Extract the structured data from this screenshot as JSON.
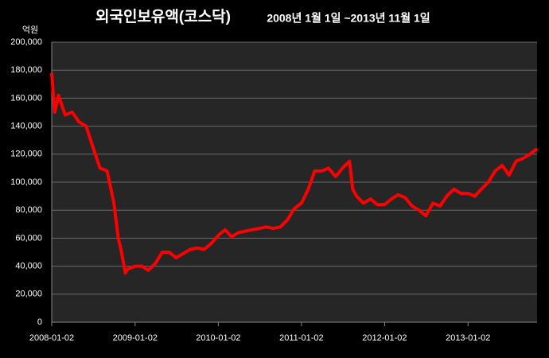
{
  "chart_data": {
    "type": "line",
    "title": "외국인보유액(코스닥)",
    "subtitle": "2008년 1월 1일 ~2013년 11월 1일",
    "y_label": "억원",
    "xlim": [
      "2008-01-02",
      "2013-11-01"
    ],
    "xticks": [
      "2008-01-02",
      "2009-01-02",
      "2010-01-02",
      "2011-01-02",
      "2012-01-02",
      "2013-01-02"
    ],
    "ylim": [
      0,
      200000
    ],
    "yticks": [
      0,
      {
        "value": 20000,
        "label": "20,000"
      },
      {
        "value": 40000,
        "label": "40,000"
      },
      {
        "value": 60000,
        "label": "60,000"
      },
      {
        "value": 80000,
        "label": "80,000"
      },
      {
        "value": 100000,
        "label": "100,000"
      },
      {
        "value": 120000,
        "label": "120,000"
      },
      {
        "value": 140000,
        "label": "140,000"
      },
      {
        "value": 160000,
        "label": "160,000"
      },
      {
        "value": 180000,
        "label": "180,000"
      },
      {
        "value": 200000,
        "label": "200,000"
      }
    ],
    "grid": true,
    "x": [
      "2008-01-02",
      "2008-01-15",
      "2008-02-01",
      "2008-03-01",
      "2008-04-01",
      "2008-05-01",
      "2008-06-01",
      "2008-07-01",
      "2008-08-01",
      "2008-09-01",
      "2008-10-01",
      "2008-10-20",
      "2008-11-01",
      "2008-11-20",
      "2008-12-01",
      "2009-01-02",
      "2009-02-01",
      "2009-03-01",
      "2009-04-01",
      "2009-05-01",
      "2009-06-01",
      "2009-07-01",
      "2009-08-01",
      "2009-09-01",
      "2009-10-01",
      "2009-11-01",
      "2009-12-01",
      "2010-01-02",
      "2010-02-01",
      "2010-03-01",
      "2010-04-01",
      "2010-05-01",
      "2010-06-01",
      "2010-07-01",
      "2010-08-01",
      "2010-09-01",
      "2010-10-01",
      "2010-11-01",
      "2010-12-01",
      "2011-01-02",
      "2011-02-01",
      "2011-03-01",
      "2011-04-01",
      "2011-05-01",
      "2011-06-01",
      "2011-07-01",
      "2011-08-01",
      "2011-08-15",
      "2011-09-01",
      "2011-10-01",
      "2011-11-01",
      "2011-12-01",
      "2012-01-02",
      "2012-02-01",
      "2012-03-01",
      "2012-04-01",
      "2012-05-01",
      "2012-06-01",
      "2012-07-01",
      "2012-08-01",
      "2012-09-01",
      "2012-10-01",
      "2012-11-01",
      "2012-12-01",
      "2013-01-02",
      "2013-02-01",
      "2013-03-01",
      "2013-04-01",
      "2013-05-01",
      "2013-06-01",
      "2013-07-01",
      "2013-08-01",
      "2013-09-01",
      "2013-10-01",
      "2013-11-01"
    ],
    "series": [
      {
        "color": "#ff0000",
        "values": [
          178000,
          150000,
          162000,
          148000,
          150000,
          143000,
          140000,
          125000,
          110000,
          108000,
          85000,
          60000,
          52000,
          35000,
          38000,
          40000,
          40000,
          37000,
          42000,
          50000,
          50000,
          46000,
          49000,
          52000,
          53000,
          52000,
          56000,
          62000,
          66000,
          61000,
          64000,
          65000,
          66000,
          67000,
          68000,
          67000,
          68000,
          73000,
          81000,
          85000,
          95000,
          108000,
          108000,
          110000,
          104000,
          110000,
          115000,
          95000,
          90000,
          85000,
          88000,
          84000,
          84000,
          88000,
          91000,
          89000,
          83000,
          80000,
          76000,
          85000,
          83000,
          90000,
          95000,
          92000,
          92000,
          90000,
          95000,
          100000,
          108000,
          112000,
          105000,
          115000,
          117000,
          120000,
          124000
        ]
      }
    ]
  }
}
